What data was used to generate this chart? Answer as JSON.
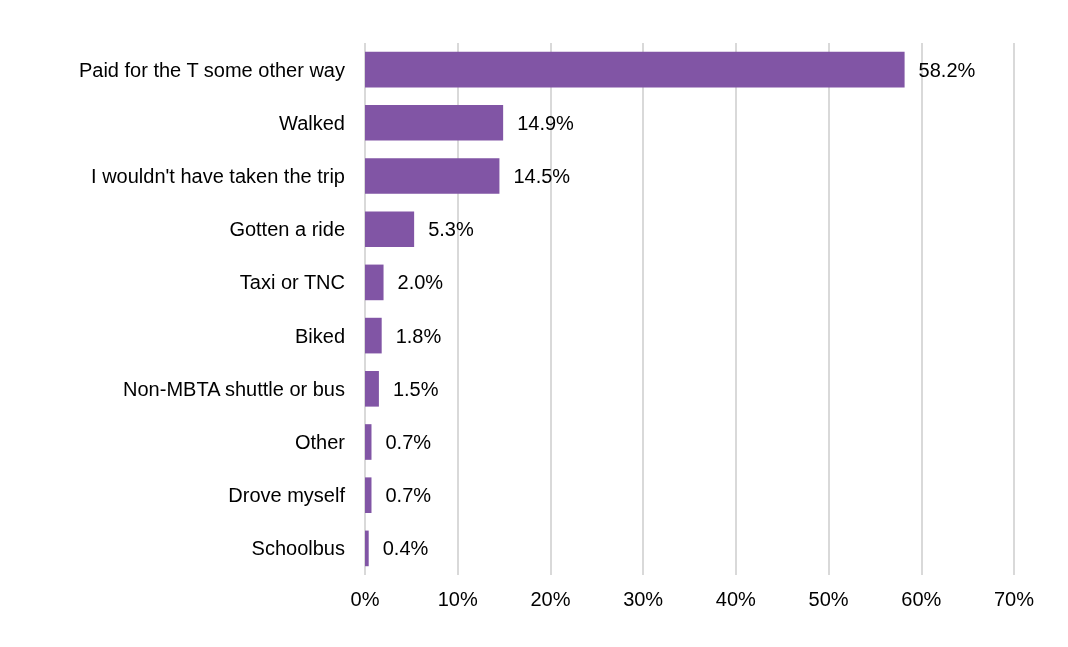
{
  "chart_data": {
    "type": "bar",
    "orientation": "horizontal",
    "categories": [
      "Paid for the T some other way",
      "Walked",
      "I wouldn't have taken the trip",
      "Gotten a ride",
      "Taxi or TNC",
      "Biked",
      "Non-MBTA shuttle or bus",
      "Other",
      "Drove myself",
      "Schoolbus"
    ],
    "values": [
      58.2,
      14.9,
      14.5,
      5.3,
      2.0,
      1.8,
      1.5,
      0.7,
      0.7,
      0.4
    ],
    "value_labels": [
      "58.2%",
      "14.9%",
      "14.5%",
      "5.3%",
      "2.0%",
      "1.8%",
      "1.5%",
      "0.7%",
      "0.7%",
      "0.4%"
    ],
    "color": "#8155a5",
    "xlim": [
      0,
      70
    ],
    "xticks": [
      {
        "value": 0,
        "label": "0%"
      },
      {
        "value": 10,
        "label": "10%"
      },
      {
        "value": 20,
        "label": "20%"
      },
      {
        "value": 30,
        "label": "30%"
      },
      {
        "value": 40,
        "label": "40%"
      },
      {
        "value": 50,
        "label": "50%"
      },
      {
        "value": 60,
        "label": "60%"
      },
      {
        "value": 70,
        "label": "70%"
      }
    ],
    "grid": "x"
  }
}
